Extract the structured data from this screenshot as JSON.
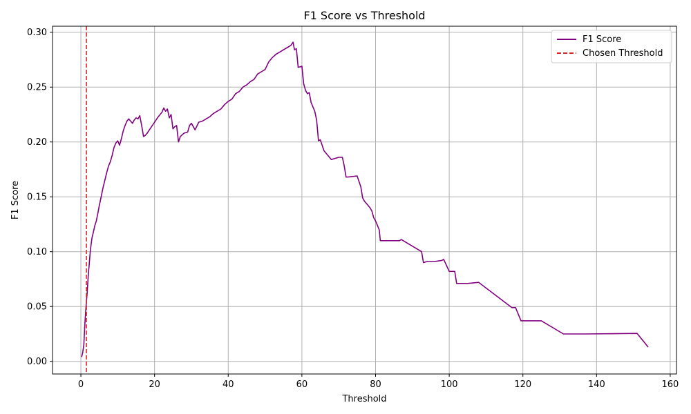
{
  "chart_data": {
    "type": "line",
    "title": "F1 Score vs Threshold",
    "xlabel": "Threshold",
    "ylabel": "F1 Score",
    "xlim": [
      -7.7,
      161.7
    ],
    "ylim": [
      -0.0115,
      0.3055
    ],
    "xticks": [
      0,
      20,
      40,
      60,
      80,
      100,
      120,
      140,
      160
    ],
    "yticks": [
      0.0,
      0.05,
      0.1,
      0.15,
      0.2,
      0.25,
      0.3
    ],
    "xtick_labels": [
      "0",
      "20",
      "40",
      "60",
      "80",
      "100",
      "120",
      "140",
      "160"
    ],
    "ytick_labels": [
      "0.00",
      "0.05",
      "0.10",
      "0.15",
      "0.20",
      "0.25",
      "0.30"
    ],
    "grid": true,
    "legend_position": "top-right",
    "colors": {
      "f1": "#800080",
      "threshold": "#d62728",
      "grid": "#b0b0b0"
    },
    "series": [
      {
        "name": "F1 Score",
        "style": "solid",
        "x": [
          0.2,
          0.5,
          0.8,
          1.1,
          1.4,
          1.7,
          2.0,
          2.3,
          2.6,
          3.0,
          3.4,
          3.8,
          4.2,
          4.6,
          5.0,
          5.5,
          6.0,
          6.5,
          7.0,
          7.5,
          8.0,
          8.5,
          9.0,
          9.5,
          10.0,
          10.5,
          11.0,
          11.5,
          12.0,
          12.5,
          13.0,
          13.5,
          14.0,
          14.5,
          15.0,
          15.5,
          16.0,
          16.5,
          17.0,
          17.5,
          18.0,
          19.0,
          20.0,
          21.0,
          22.0,
          22.5,
          23.0,
          23.5,
          24.0,
          24.5,
          25.0,
          25.5,
          26.0,
          26.5,
          27.0,
          28.0,
          29.0,
          29.5,
          30.0,
          31.0,
          32.0,
          33.0,
          34.0,
          35.0,
          36.0,
          37.0,
          38.0,
          39.0,
          40.0,
          41.0,
          42.0,
          43.0,
          44.0,
          45.0,
          46.0,
          47.0,
          48.0,
          49.0,
          50.0,
          51.0,
          52.0,
          53.0,
          54.0,
          55.0,
          56.0,
          57.0,
          57.6,
          58.0,
          58.5,
          59.0,
          60.0,
          60.5,
          61.0,
          61.5,
          62.0,
          62.5,
          63.0,
          63.5,
          64.0,
          64.5,
          65.0,
          66.0,
          66.5,
          68.0,
          70.0,
          71.0,
          71.5,
          72.0,
          72.5,
          75.0,
          76.0,
          76.5,
          77.0,
          78.0,
          78.5,
          79.0,
          79.5,
          80.0,
          81.0,
          81.3,
          85.0,
          86.5,
          87.0,
          92.5,
          93.0,
          94.0,
          96.0,
          98.0,
          98.5,
          100.0,
          101.5,
          102.0,
          105.0,
          108.0,
          117.0,
          118.0,
          119.5,
          122.0,
          125.0,
          131.0,
          137.0,
          151.0,
          154.0
        ],
        "y": [
          0.004,
          0.008,
          0.015,
          0.035,
          0.05,
          0.062,
          0.078,
          0.09,
          0.102,
          0.112,
          0.118,
          0.124,
          0.128,
          0.135,
          0.142,
          0.15,
          0.158,
          0.165,
          0.172,
          0.178,
          0.182,
          0.188,
          0.195,
          0.199,
          0.201,
          0.197,
          0.203,
          0.21,
          0.215,
          0.219,
          0.221,
          0.219,
          0.217,
          0.22,
          0.222,
          0.221,
          0.224,
          0.215,
          0.205,
          0.206,
          0.208,
          0.213,
          0.218,
          0.223,
          0.227,
          0.231,
          0.228,
          0.23,
          0.222,
          0.225,
          0.212,
          0.214,
          0.215,
          0.2,
          0.205,
          0.208,
          0.209,
          0.215,
          0.217,
          0.211,
          0.218,
          0.219,
          0.221,
          0.223,
          0.226,
          0.228,
          0.23,
          0.234,
          0.237,
          0.239,
          0.244,
          0.246,
          0.25,
          0.252,
          0.255,
          0.257,
          0.262,
          0.264,
          0.266,
          0.273,
          0.277,
          0.28,
          0.282,
          0.284,
          0.286,
          0.288,
          0.291,
          0.284,
          0.285,
          0.268,
          0.269,
          0.253,
          0.247,
          0.244,
          0.245,
          0.236,
          0.232,
          0.228,
          0.22,
          0.201,
          0.202,
          0.192,
          0.19,
          0.184,
          0.186,
          0.186,
          0.178,
          0.168,
          0.168,
          0.169,
          0.159,
          0.149,
          0.146,
          0.142,
          0.14,
          0.137,
          0.131,
          0.128,
          0.12,
          0.11,
          0.11,
          0.11,
          0.111,
          0.1,
          0.09,
          0.091,
          0.091,
          0.092,
          0.093,
          0.082,
          0.082,
          0.071,
          0.071,
          0.072,
          0.049,
          0.049,
          0.037,
          0.037,
          0.037,
          0.025,
          0.025,
          0.0255,
          0.013
        ]
      },
      {
        "name": "Chosen Threshold",
        "style": "dashed",
        "x_value": 1.5
      }
    ]
  }
}
